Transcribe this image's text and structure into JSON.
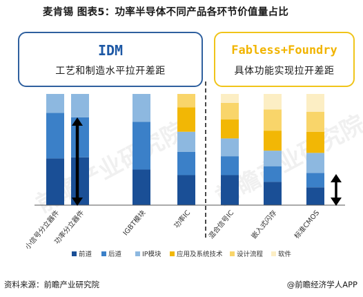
{
  "header": {
    "title": "麦肯锡 图表5：功率半导体不同产品各环节价值量占比"
  },
  "boxes": {
    "idm": {
      "head": "IDM",
      "sub": "工艺和制造水平拉开差距"
    },
    "fab": {
      "head": "Fabless+Foundry",
      "sub": "具体功能实现拉开差距"
    }
  },
  "footer": {
    "source": "资料来源：前瞻产业研究院",
    "brand": "@前瞻经济学人APP"
  },
  "watermark": "前瞻产业研究院",
  "colors": {
    "前道": "#1a4f96",
    "后道": "#3b80c8",
    "IP模块": "#8db8e0",
    "应用及系统技术": "#f2b705",
    "设计流程": "#f9d56a",
    "软件": "#fceec4",
    "arrow": "#000000",
    "divider": "#333333",
    "axis": "#555555"
  },
  "chart_data": {
    "type": "bar",
    "stacked": true,
    "categories": [
      "小信号分立器件",
      "功率分立器件",
      "IGBT模块",
      "功率IC",
      "混合信号IC",
      "嵌入式闪存",
      "标准CMOS"
    ],
    "series": [
      {
        "name": "前道",
        "values": [
          0.42,
          0.43,
          0.32,
          0.27,
          0.27,
          0.21,
          0.16
        ]
      },
      {
        "name": "后道",
        "values": [
          0.41,
          0.36,
          0.43,
          0.21,
          0.17,
          0.14,
          0.13
        ]
      },
      {
        "name": "IP模块",
        "values": [
          0.17,
          0.21,
          0.25,
          0.18,
          0.16,
          0.14,
          0.18
        ]
      },
      {
        "name": "应用及系统技术",
        "values": [
          0.0,
          0.0,
          0.0,
          0.22,
          0.17,
          0.18,
          0.19
        ]
      },
      {
        "name": "设计流程",
        "values": [
          0.0,
          0.0,
          0.0,
          0.12,
          0.15,
          0.19,
          0.18
        ]
      },
      {
        "name": "软件",
        "values": [
          0.0,
          0.0,
          0.0,
          0.0,
          0.08,
          0.14,
          0.16
        ]
      }
    ],
    "ylim": [
      0,
      1
    ],
    "legend": {
      "position": "bottom",
      "items": [
        "前道",
        "后道",
        "IP模块",
        "应用及系统技术",
        "设计流程",
        "软件"
      ]
    },
    "gap_arrows": [
      {
        "category": "功率分立器件",
        "group": "IDM"
      },
      {
        "category": "标准CMOS",
        "group": "Fabless+Foundry"
      }
    ]
  }
}
